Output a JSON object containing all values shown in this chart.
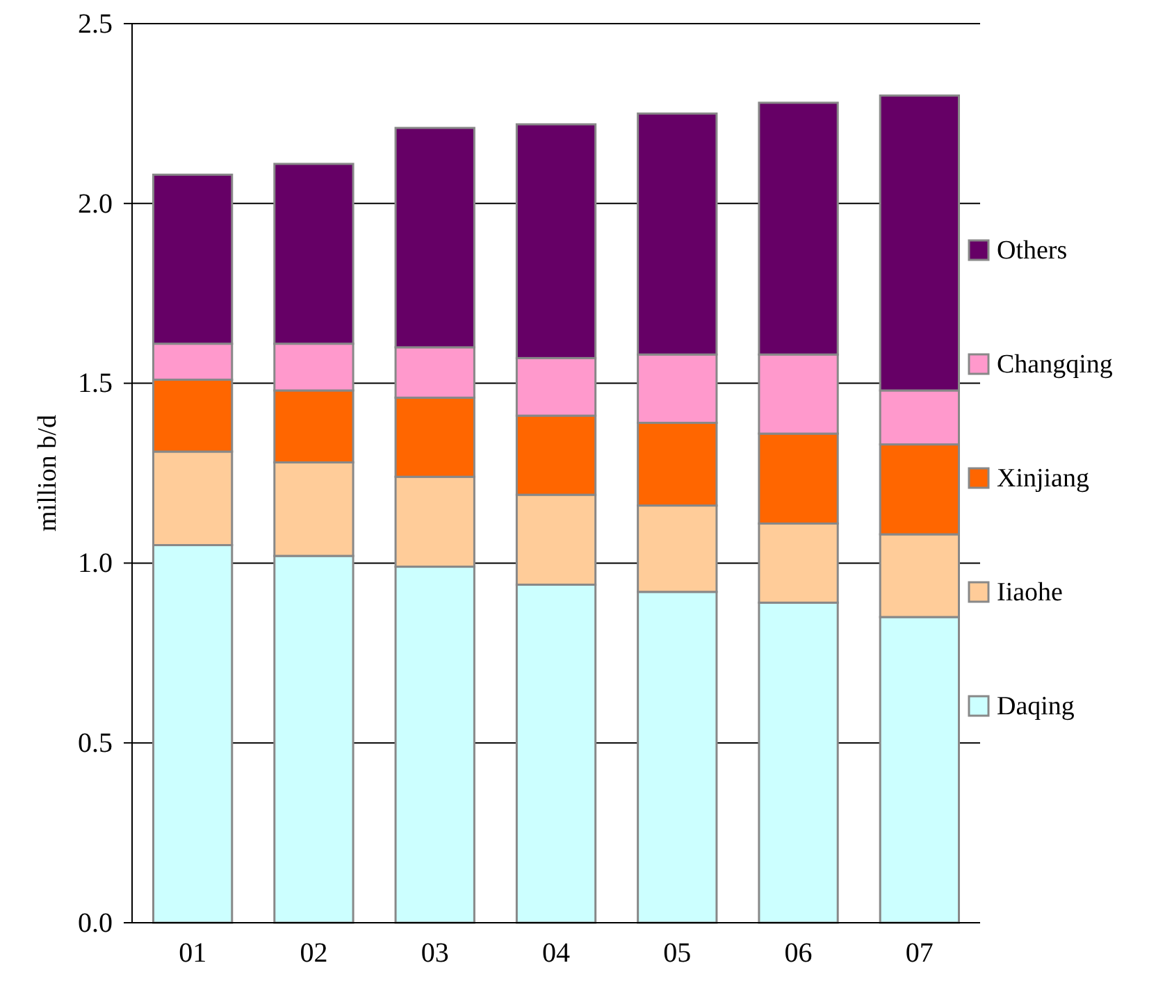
{
  "chart_data": {
    "type": "bar",
    "stacked": true,
    "ylabel": "million b/d",
    "categories": [
      "01",
      "02",
      "03",
      "04",
      "05",
      "06",
      "07"
    ],
    "ylim": [
      0,
      2.5
    ],
    "yticks": [
      {
        "value": 0,
        "label": "0.0"
      },
      {
        "value": 0.5,
        "label": "0.5"
      },
      {
        "value": 1,
        "label": "1.0"
      },
      {
        "value": 1.5,
        "label": "1.5"
      },
      {
        "value": 2,
        "label": "2.0"
      },
      {
        "value": 2.5,
        "label": "2.5"
      }
    ],
    "grid": "y",
    "legend": "right",
    "series": [
      {
        "name": "Daqing",
        "color": "#ccffff",
        "values": [
          1.05,
          1.02,
          0.99,
          0.94,
          0.92,
          0.89,
          0.85
        ]
      },
      {
        "name": "Iiaohe",
        "color": "#ffcc99",
        "values": [
          0.26,
          0.26,
          0.25,
          0.25,
          0.24,
          0.22,
          0.23
        ]
      },
      {
        "name": "Xinjiang",
        "color": "#ff6600",
        "values": [
          0.2,
          0.2,
          0.22,
          0.22,
          0.23,
          0.25,
          0.25
        ]
      },
      {
        "name": "Changqing",
        "color": "#ff99cc",
        "values": [
          0.1,
          0.13,
          0.14,
          0.16,
          0.19,
          0.22,
          0.15
        ]
      },
      {
        "name": "Others",
        "color": "#660066",
        "values": [
          0.47,
          0.5,
          0.61,
          0.65,
          0.67,
          0.7,
          0.82
        ]
      }
    ]
  }
}
